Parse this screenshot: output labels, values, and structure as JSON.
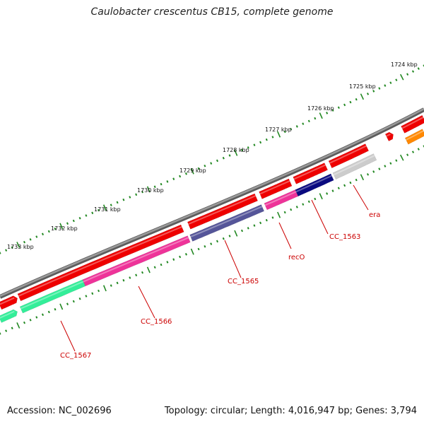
{
  "title": "Caulobacter crescentus CB15, complete genome",
  "ruler": {
    "labels": [
      "1724 kbp",
      "1725 kbp",
      "1726 kbp",
      "1727 kbp",
      "1728 kbp",
      "1729 kbp",
      "1730 kbp",
      "1731 kbp",
      "1732 kbp",
      "1733 kbp"
    ]
  },
  "genes": [
    {
      "name": "era",
      "color": "#cccccc"
    },
    {
      "name": "CC_1563",
      "color": "#0a0a80"
    },
    {
      "name": "recO",
      "color": "#ee3399"
    },
    {
      "name": "CC_1565",
      "color": "#555599"
    },
    {
      "name": "CC_1566",
      "color": "#ee3399"
    },
    {
      "name": "CC_1567",
      "color": "#33ee99"
    }
  ],
  "colors": {
    "backbone": "#808080",
    "forward_feature": "#ee0000",
    "reverse_feature_orange": "#ff8800",
    "ticks": "#228822"
  },
  "footer": {
    "accession": "Accession: NC_002696",
    "stats": "Topology: circular; Length: 4,016,947 bp; Genes: 3,794"
  }
}
